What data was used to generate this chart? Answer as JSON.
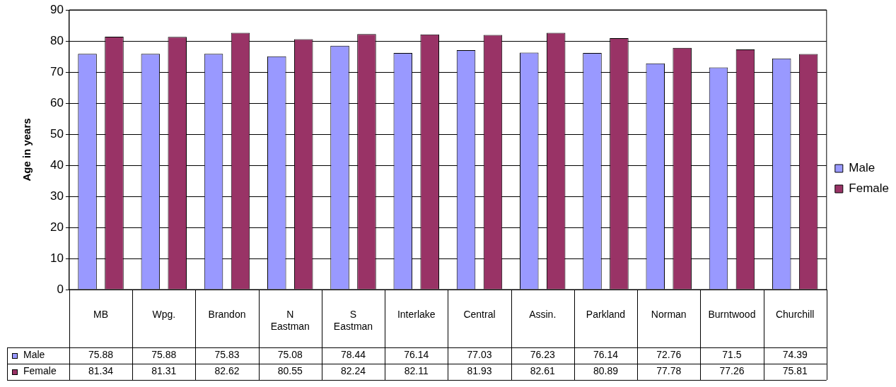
{
  "chart_data": {
    "type": "bar",
    "ylabel": "Age in years",
    "categories": [
      "MB",
      "Wpg.",
      "Brandon",
      "N Eastman",
      "S Eastman",
      "Interlake",
      "Central",
      "Assin.",
      "Parkland",
      "Norman",
      "Burntwood",
      "Churchill"
    ],
    "series": [
      {
        "name": "Male",
        "color": "#9999ff",
        "values": [
          75.88,
          75.88,
          75.83,
          75.08,
          78.44,
          76.14,
          77.03,
          76.23,
          76.14,
          72.76,
          71.5,
          74.39
        ]
      },
      {
        "name": "Female",
        "color": "#993366",
        "values": [
          81.34,
          81.31,
          82.62,
          80.55,
          82.24,
          82.11,
          81.93,
          82.61,
          80.89,
          77.78,
          77.26,
          75.81
        ]
      }
    ],
    "ylim": [
      0,
      90
    ],
    "yticks": [
      0,
      10,
      20,
      30,
      40,
      50,
      60,
      70,
      80,
      90
    ],
    "grid": "y",
    "legend": "right",
    "data_labels": true
  }
}
